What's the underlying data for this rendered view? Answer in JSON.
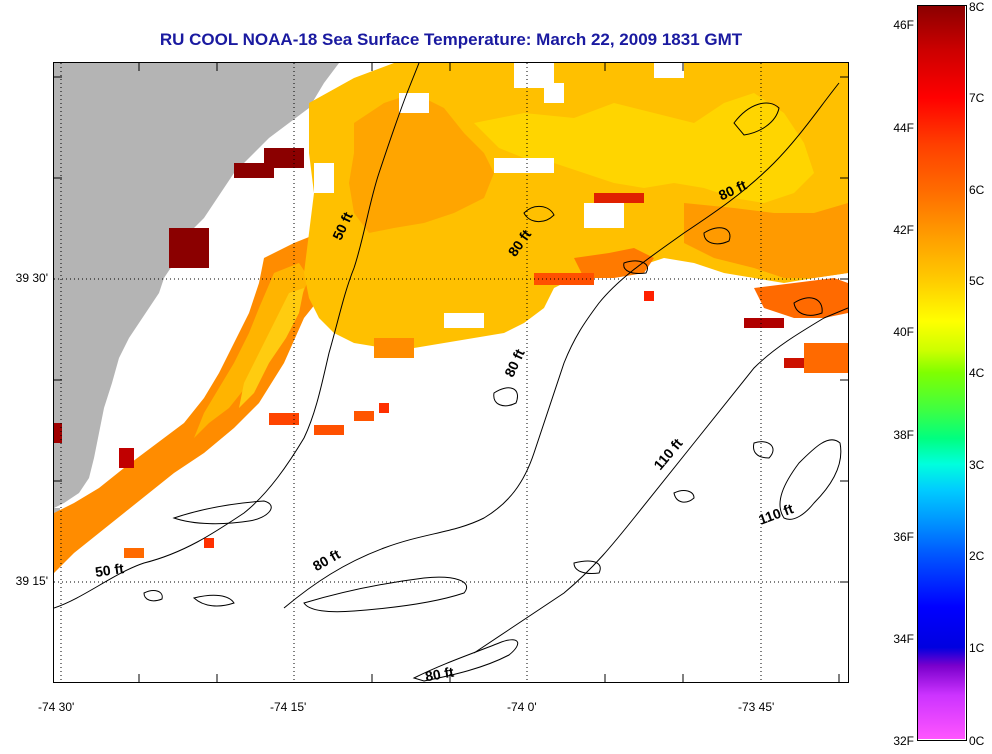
{
  "title": "RU COOL  NOAA-18  Sea Surface Temperature:  March 22, 2009 1831 GMT",
  "map": {
    "lat_labels": [
      "39 30'",
      "39 15'"
    ],
    "lon_labels": [
      "-74 30'",
      "-74 15'",
      "-74 0'",
      "-73 45'"
    ],
    "depth_labels": [
      "50 ft",
      "50 ft",
      "80 ft",
      "80 ft",
      "80 ft",
      "80 ft",
      "80 ft",
      "110 ft",
      "110 ft"
    ],
    "colors": {
      "land": "#b4b4b4",
      "cloud": "#ffffff",
      "contour": "#000000",
      "grid": "#000000"
    }
  },
  "colorbar": {
    "fahrenheit": [
      "46F",
      "44F",
      "42F",
      "40F",
      "38F",
      "36F",
      "34F",
      "32F"
    ],
    "celsius": [
      "8C",
      "7C",
      "6C",
      "5C",
      "4C",
      "3C",
      "2C",
      "1C",
      "0C"
    ],
    "colors": {
      "top": "#8b0000",
      "mid": "#ffff00",
      "low": "#0000ff",
      "bottom": "#ff55ff"
    }
  }
}
